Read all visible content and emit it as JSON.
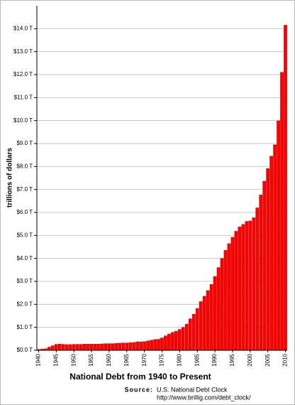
{
  "chart_data": {
    "type": "bar",
    "title": "National Debt from 1940 to Present",
    "ylabel": "trillions of dollars",
    "source_label": "Source:",
    "source": "U.S. National Debt Clock",
    "source_url": "http://www.brillig.com/debt_clock/",
    "color": "#ff0000",
    "grid": true,
    "ylim": [
      0,
      15
    ],
    "yticks": [
      {
        "value": 0,
        "label": "$0.0 T"
      },
      {
        "value": 1,
        "label": "$1.0 T"
      },
      {
        "value": 2,
        "label": "$2.0 T"
      },
      {
        "value": 3,
        "label": "$3.0 T"
      },
      {
        "value": 4,
        "label": "$4.0 T"
      },
      {
        "value": 5,
        "label": "$5.0 T"
      },
      {
        "value": 6,
        "label": "$6.0 T"
      },
      {
        "value": 7,
        "label": "$7.0 T"
      },
      {
        "value": 8,
        "label": "$8.0 T"
      },
      {
        "value": 9,
        "label": "$9.0 T"
      },
      {
        "value": 10,
        "label": "$10.0 T"
      },
      {
        "value": 11,
        "label": "$11.0 T"
      },
      {
        "value": 12,
        "label": "$12.0 T"
      },
      {
        "value": 13,
        "label": "$13.0 T"
      },
      {
        "value": 14,
        "label": "$14.0 T"
      }
    ],
    "categories": [
      "1940",
      null,
      null,
      null,
      null,
      "1945",
      null,
      null,
      null,
      null,
      "1950",
      null,
      null,
      null,
      null,
      "1955",
      null,
      null,
      null,
      null,
      "1960",
      null,
      null,
      null,
      null,
      "1965",
      null,
      null,
      null,
      null,
      "1970",
      null,
      null,
      null,
      null,
      "1975",
      null,
      null,
      null,
      null,
      "1980",
      null,
      null,
      null,
      null,
      "1985",
      null,
      null,
      null,
      null,
      "1990",
      null,
      null,
      null,
      null,
      "1995",
      null,
      null,
      null,
      null,
      "2000",
      null,
      null,
      null,
      null,
      "2005",
      null,
      null,
      null,
      null,
      "2010"
    ],
    "values": [
      0.04,
      0.05,
      0.07,
      0.14,
      0.2,
      0.26,
      0.27,
      0.26,
      0.25,
      0.25,
      0.26,
      0.26,
      0.26,
      0.27,
      0.27,
      0.27,
      0.27,
      0.27,
      0.28,
      0.29,
      0.29,
      0.29,
      0.3,
      0.31,
      0.32,
      0.32,
      0.33,
      0.34,
      0.37,
      0.37,
      0.38,
      0.41,
      0.44,
      0.47,
      0.48,
      0.54,
      0.63,
      0.71,
      0.78,
      0.83,
      0.91,
      1.0,
      1.14,
      1.37,
      1.57,
      1.82,
      2.12,
      2.35,
      2.6,
      2.87,
      3.21,
      3.6,
      4.0,
      4.35,
      4.64,
      4.92,
      5.18,
      5.37,
      5.48,
      5.61,
      5.63,
      5.77,
      6.2,
      6.76,
      7.36,
      7.91,
      8.45,
      8.95,
      9.99,
      12.1,
      14.15
    ]
  }
}
